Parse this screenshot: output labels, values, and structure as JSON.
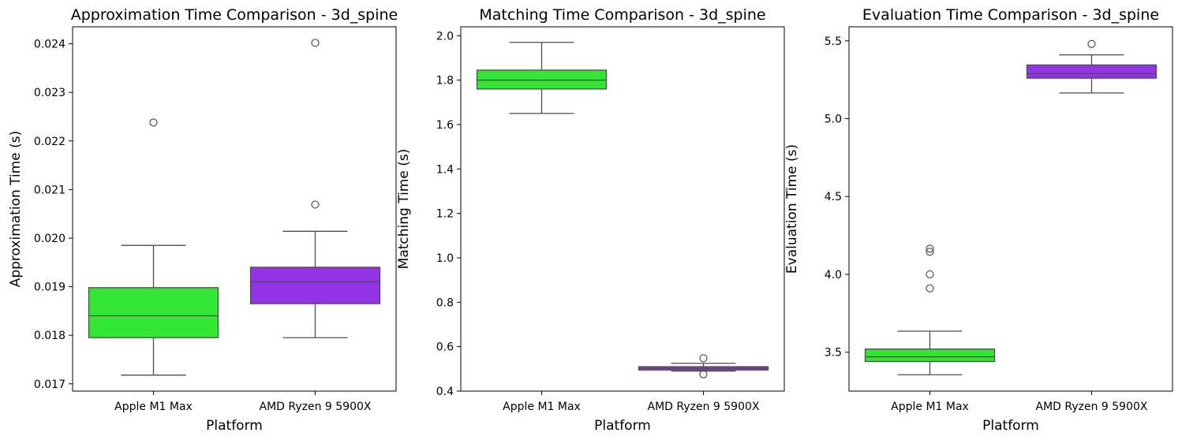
{
  "chart_data": [
    {
      "type": "box",
      "title": "Approximation Time Comparison - 3d_spine",
      "xlabel": "Platform",
      "ylabel": "Approximation Time (s)",
      "ylim": [
        0.01685,
        0.02435
      ],
      "yticks": [
        0.017,
        0.018,
        0.019,
        0.02,
        0.021,
        0.022,
        0.023,
        0.024
      ],
      "ytick_labels": [
        "0.017",
        "0.018",
        "0.019",
        "0.020",
        "0.021",
        "0.022",
        "0.023",
        "0.024"
      ],
      "categories": [
        "Apple M1 Max",
        "AMD Ryzen 9 5900X"
      ],
      "boxes": [
        {
          "category": "Apple M1 Max",
          "color": "#33e633",
          "whisker_low": 0.01718,
          "q1": 0.01795,
          "median": 0.0184,
          "q3": 0.01898,
          "whisker_high": 0.01985,
          "outliers": [
            0.02238
          ]
        },
        {
          "category": "AMD Ryzen 9 5900X",
          "color": "#9333e6",
          "whisker_low": 0.01795,
          "q1": 0.01865,
          "median": 0.0191,
          "q3": 0.0194,
          "whisker_high": 0.02014,
          "outliers": [
            0.02069,
            0.02402
          ]
        }
      ]
    },
    {
      "type": "box",
      "title": "Matching Time Comparison - 3d_spine",
      "xlabel": "Platform",
      "ylabel": "Matching Time (s)",
      "ylim": [
        0.4,
        2.04
      ],
      "yticks": [
        0.4,
        0.6,
        0.8,
        1.0,
        1.2,
        1.4,
        1.6,
        1.8,
        2.0
      ],
      "ytick_labels": [
        "0.4",
        "0.6",
        "0.8",
        "1.0",
        "1.2",
        "1.4",
        "1.6",
        "1.8",
        "2.0"
      ],
      "categories": [
        "Apple M1 Max",
        "AMD Ryzen 9 5900X"
      ],
      "boxes": [
        {
          "category": "Apple M1 Max",
          "color": "#33e633",
          "whisker_low": 1.65,
          "q1": 1.76,
          "median": 1.8,
          "q3": 1.845,
          "whisker_high": 1.97,
          "outliers": []
        },
        {
          "category": "AMD Ryzen 9 5900X",
          "color": "#9333e6",
          "whisker_low": 0.49,
          "q1": 0.495,
          "median": 0.502,
          "q3": 0.51,
          "whisker_high": 0.525,
          "outliers": [
            0.548,
            0.476
          ]
        }
      ]
    },
    {
      "type": "box",
      "title": "Evaluation Time Comparison - 3d_spine",
      "xlabel": "Platform",
      "ylabel": "Evaluation Time (s)",
      "ylim": [
        3.25,
        5.59
      ],
      "yticks": [
        3.5,
        4.0,
        4.5,
        5.0,
        5.5
      ],
      "ytick_labels": [
        "3.5",
        "4.0",
        "4.5",
        "5.0",
        "5.5"
      ],
      "categories": [
        "Apple M1 Max",
        "AMD Ryzen 9 5900X"
      ],
      "boxes": [
        {
          "category": "Apple M1 Max",
          "color": "#33e633",
          "whisker_low": 3.355,
          "q1": 3.44,
          "median": 3.47,
          "q3": 3.52,
          "whisker_high": 3.635,
          "outliers": [
            3.91,
            4.0,
            4.145,
            4.165
          ]
        },
        {
          "category": "AMD Ryzen 9 5900X",
          "color": "#9333e6",
          "whisker_low": 5.165,
          "q1": 5.26,
          "median": 5.29,
          "q3": 5.345,
          "whisker_high": 5.41,
          "outliers": [
            5.48
          ]
        }
      ]
    }
  ]
}
